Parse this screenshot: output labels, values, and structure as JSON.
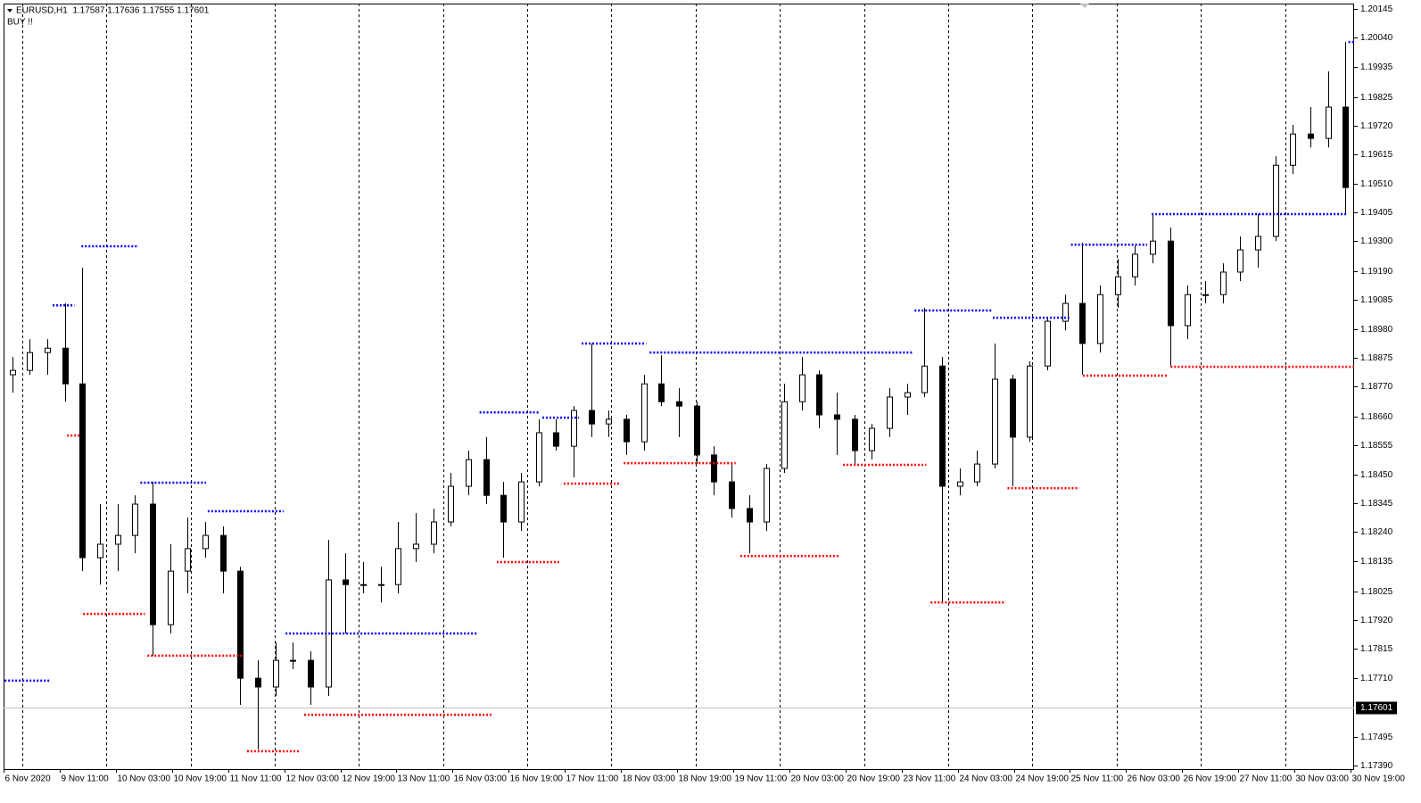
{
  "chart_data": {
    "type": "candlestick",
    "title": "EURUSD,H1  1.17587 1.17636 1.17555 1.17601",
    "subtitle": "BUY !!",
    "x": [
      2.5,
      7.5,
      12.5,
      17.5,
      22.5,
      27.5,
      32.5,
      37.5,
      42.5,
      47.5,
      52.5,
      57.5,
      62.5,
      67.5,
      72.5,
      77.5,
      82.5,
      87.5,
      92.5,
      97.5,
      102.5,
      107.5,
      112.5,
      117.5,
      122.5,
      127.5,
      132.5,
      137.5,
      142.5,
      147.5,
      152.5,
      157.5,
      162.5,
      167.5,
      172.5,
      177.5,
      182.5,
      187.5,
      192.5,
      197.5,
      202.5,
      207.5,
      212.5,
      217.5,
      222.5,
      227.5,
      232.5,
      237.5,
      242.5,
      247.5,
      252.5,
      257.5,
      262.5,
      267.5,
      272.5,
      277.5,
      282.5,
      287.5,
      292.5,
      297.5,
      302.5,
      307.5,
      312.5,
      317.5,
      322.5,
      327.5,
      332.5,
      337.5,
      342.5,
      347.5,
      352.5,
      357.5,
      362.5,
      367.5,
      372.5,
      377.5,
      382.5
    ],
    "open": [
      1.18813,
      1.18829,
      1.18894,
      1.1891,
      1.1878,
      1.18147,
      1.18196,
      1.18228,
      1.18342,
      1.17903,
      1.18098,
      1.1818,
      1.18228,
      1.18098,
      1.17708,
      1.17676,
      1.17773,
      1.17773,
      1.17676,
      1.18066,
      1.18049,
      1.18049,
      1.18049,
      1.1818,
      1.18196,
      1.18277,
      1.18407,
      1.18504,
      1.18374,
      1.18277,
      1.18423,
      1.18602,
      1.18553,
      1.18683,
      1.18634,
      1.18651,
      1.18569,
      1.1878,
      1.18715,
      1.18699,
      1.18521,
      1.18423,
      1.18326,
      1.18277,
      1.18472,
      1.18715,
      1.18813,
      1.18667,
      1.18651,
      1.18537,
      1.18618,
      1.18732,
      1.18748,
      1.18845,
      1.18407,
      1.18423,
      1.18488,
      1.18797,
      1.18586,
      1.18845,
      1.19008,
      1.19073,
      1.18927,
      1.19105,
      1.1917,
      1.19252,
      1.193,
      1.18992,
      1.19105,
      1.19105,
      1.19187,
      1.19268,
      1.19317,
      1.19576,
      1.1969,
      1.19674,
      1.19788
    ],
    "high": [
      1.18878,
      1.18943,
      1.18943,
      1.19073,
      1.19203,
      1.18342,
      1.18342,
      1.18374,
      1.18423,
      1.18196,
      1.18293,
      1.18277,
      1.18261,
      1.18114,
      1.17773,
      1.17838,
      1.17838,
      1.17806,
      1.18212,
      1.18163,
      1.18131,
      1.18114,
      1.18277,
      1.18309,
      1.18326,
      1.18456,
      1.18537,
      1.18586,
      1.18423,
      1.18456,
      1.18651,
      1.18651,
      1.18699,
      1.18927,
      1.18683,
      1.18667,
      1.18813,
      1.18884,
      1.18764,
      1.18715,
      1.18553,
      1.18488,
      1.18374,
      1.18488,
      1.1878,
      1.18878,
      1.18829,
      1.18748,
      1.18667,
      1.18634,
      1.18764,
      1.1878,
      1.19057,
      1.18878,
      1.18472,
      1.18537,
      1.18927,
      1.18813,
      1.18862,
      1.19024,
      1.19105,
      1.19294,
      1.19138,
      1.19235,
      1.19284,
      1.19398,
      1.19349,
      1.19138,
      1.19154,
      1.19219,
      1.19317,
      1.19398,
      1.19609,
      1.19723,
      1.19788,
      1.19918,
      1.20025
    ],
    "low": [
      1.18748,
      1.18813,
      1.18813,
      1.18715,
      1.18098,
      1.18049,
      1.18098,
      1.18163,
      1.1779,
      1.17871,
      1.18017,
      1.18147,
      1.18017,
      1.17611,
      1.17448,
      1.17643,
      1.17741,
      1.17611,
      1.17643,
      1.17871,
      1.18017,
      1.17984,
      1.18017,
      1.18131,
      1.18163,
      1.18261,
      1.18374,
      1.18342,
      1.18147,
      1.18244,
      1.18407,
      1.18537,
      1.18439,
      1.18586,
      1.18586,
      1.18521,
      1.18537,
      1.18699,
      1.18586,
      1.18488,
      1.18374,
      1.18293,
      1.18163,
      1.18244,
      1.18456,
      1.18683,
      1.18618,
      1.18521,
      1.18488,
      1.18504,
      1.18586,
      1.18667,
      1.18732,
      1.17984,
      1.18374,
      1.18407,
      1.18472,
      1.18407,
      1.18569,
      1.18829,
      1.18975,
      1.18813,
      1.18894,
      1.19057,
      1.19138,
      1.19219,
      1.18845,
      1.18943,
      1.19073,
      1.19073,
      1.19154,
      1.19203,
      1.193,
      1.19544,
      1.19641,
      1.19641,
      1.19398
    ],
    "close": [
      1.18829,
      1.18894,
      1.1891,
      1.1878,
      1.18147,
      1.18196,
      1.18228,
      1.18342,
      1.17903,
      1.18098,
      1.1818,
      1.18228,
      1.18098,
      1.17708,
      1.17676,
      1.17773,
      1.17773,
      1.17676,
      1.18066,
      1.18049,
      1.18049,
      1.18049,
      1.1818,
      1.18196,
      1.18277,
      1.18407,
      1.18504,
      1.18374,
      1.18277,
      1.18423,
      1.18602,
      1.18553,
      1.18683,
      1.18634,
      1.18651,
      1.18569,
      1.1878,
      1.18715,
      1.18699,
      1.18521,
      1.18423,
      1.18326,
      1.18277,
      1.18472,
      1.18715,
      1.18813,
      1.18667,
      1.18651,
      1.18537,
      1.18618,
      1.18732,
      1.18748,
      1.18845,
      1.18407,
      1.18423,
      1.18488,
      1.18797,
      1.18586,
      1.18845,
      1.19008,
      1.19073,
      1.18927,
      1.19105,
      1.1917,
      1.19252,
      1.193,
      1.18992,
      1.19105,
      1.19105,
      1.19187,
      1.19268,
      1.19317,
      1.19576,
      1.1969,
      1.19674,
      1.19788,
      1.19495
    ],
    "up_color": "#ffffff",
    "down_color": "#000000",
    "edge_color": "#000000",
    "xlim": [
      0,
      385
    ],
    "xticks": [
      {
        "value": 0,
        "label": "6 Nov 2020"
      },
      {
        "value": 16,
        "label": "9 Nov 11:00"
      },
      {
        "value": 32,
        "label": "10 Nov 03:00"
      },
      {
        "value": 48,
        "label": "10 Nov 19:00"
      },
      {
        "value": 64,
        "label": "11 Nov 11:00"
      },
      {
        "value": 80,
        "label": "12 Nov 03:00"
      },
      {
        "value": 96,
        "label": "12 Nov 19:00"
      },
      {
        "value": 112,
        "label": "13 Nov 11:00"
      },
      {
        "value": 128,
        "label": "16 Nov 03:00"
      },
      {
        "value": 144,
        "label": "16 Nov 19:00"
      },
      {
        "value": 160,
        "label": "17 Nov 11:00"
      },
      {
        "value": 176,
        "label": "18 Nov 03:00"
      },
      {
        "value": 192,
        "label": "18 Nov 19:00"
      },
      {
        "value": 208,
        "label": "19 Nov 11:00"
      },
      {
        "value": 224,
        "label": "20 Nov 03:00"
      },
      {
        "value": 240,
        "label": "20 Nov 19:00"
      },
      {
        "value": 256,
        "label": "23 Nov 11:00"
      },
      {
        "value": 272,
        "label": "24 Nov 03:00"
      },
      {
        "value": 288,
        "label": "24 Nov 19:00"
      },
      {
        "value": 304,
        "label": "25 Nov 11:00"
      },
      {
        "value": 320,
        "label": "26 Nov 03:00"
      },
      {
        "value": 336,
        "label": "26 Nov 19:00"
      },
      {
        "value": 352,
        "label": "27 Nov 11:00"
      },
      {
        "value": 368,
        "label": "30 Nov 03:00"
      },
      {
        "value": 384,
        "label": "30 Nov 19:00"
      }
    ],
    "ylim": [
      1.17377,
      1.20165
    ],
    "yticks": [
      1.20145,
      {
        "value": 1.2004,
        "label": "1.20040"
      },
      1.19935,
      1.19825,
      {
        "value": 1.1972,
        "label": "1.19720"
      },
      1.19615,
      {
        "value": 1.1951,
        "label": "1.19510"
      },
      1.19405,
      {
        "value": 1.193,
        "label": "1.19300"
      },
      {
        "value": 1.1919,
        "label": "1.19190"
      },
      1.19085,
      {
        "value": 1.1898,
        "label": "1.18980"
      },
      1.18875,
      {
        "value": 1.1877,
        "label": "1.18770"
      },
      {
        "value": 1.1866,
        "label": "1.18660"
      },
      1.18555,
      {
        "value": 1.1845,
        "label": "1.18450"
      },
      1.18345,
      {
        "value": 1.1824,
        "label": "1.18240"
      },
      1.18135,
      1.18025,
      {
        "value": 1.1792,
        "label": "1.17920"
      },
      1.17815,
      {
        "value": 1.1771,
        "label": "1.17710"
      },
      1.17495,
      {
        "value": 1.1739,
        "label": "1.17390"
      }
    ],
    "current_price": 1.17601,
    "resistance_color": "#0000ff",
    "support_color": "#ff0000",
    "resistance_levels": [
      {
        "price": 1.17699,
        "from": 0.3,
        "to": 13.5
      },
      {
        "price": 1.19066,
        "from": 14,
        "to": 20.2
      },
      {
        "price": 1.19281,
        "from": 22.2,
        "to": 38.5
      },
      {
        "price": 1.1842,
        "from": 39,
        "to": 57.7
      },
      {
        "price": 1.18316,
        "from": 58.2,
        "to": 79.8
      },
      {
        "price": 1.17871,
        "from": 80.4,
        "to": 135
      },
      {
        "price": 1.18676,
        "from": 135.7,
        "to": 153
      },
      {
        "price": 1.18657,
        "from": 153.6,
        "to": 164
      },
      {
        "price": 1.18927,
        "from": 164.8,
        "to": 183.2
      },
      {
        "price": 1.18894,
        "from": 184.2,
        "to": 259.2
      },
      {
        "price": 1.19047,
        "from": 259.7,
        "to": 281.6
      },
      {
        "price": 1.19021,
        "from": 282,
        "to": 303.8
      },
      {
        "price": 1.19287,
        "from": 304.3,
        "to": 326
      },
      {
        "price": 1.19398,
        "from": 327.3,
        "to": 382.9
      },
      {
        "price": 1.20025,
        "from": 383.4,
        "to": 385
      }
    ],
    "support_levels": [
      {
        "price": 1.18592,
        "from": 18.1,
        "to": 22.2
      },
      {
        "price": 1.17942,
        "from": 22.7,
        "to": 40.3
      },
      {
        "price": 1.1779,
        "from": 41,
        "to": 68.4
      },
      {
        "price": 1.17442,
        "from": 69.4,
        "to": 84.7
      },
      {
        "price": 1.17575,
        "from": 85.7,
        "to": 139.5
      },
      {
        "price": 1.18131,
        "from": 140.6,
        "to": 158.9
      },
      {
        "price": 1.18417,
        "from": 159.7,
        "to": 176
      },
      {
        "price": 1.18491,
        "from": 176.8,
        "to": 208.7
      },
      {
        "price": 1.18153,
        "from": 210,
        "to": 238.3
      },
      {
        "price": 1.18485,
        "from": 239.3,
        "to": 263
      },
      {
        "price": 1.17984,
        "from": 264.3,
        "to": 285.7
      },
      {
        "price": 1.184,
        "from": 286.2,
        "to": 306.6
      },
      {
        "price": 1.1881,
        "from": 307.7,
        "to": 331.9
      },
      {
        "price": 1.18842,
        "from": 332.7,
        "to": 385
      }
    ]
  }
}
